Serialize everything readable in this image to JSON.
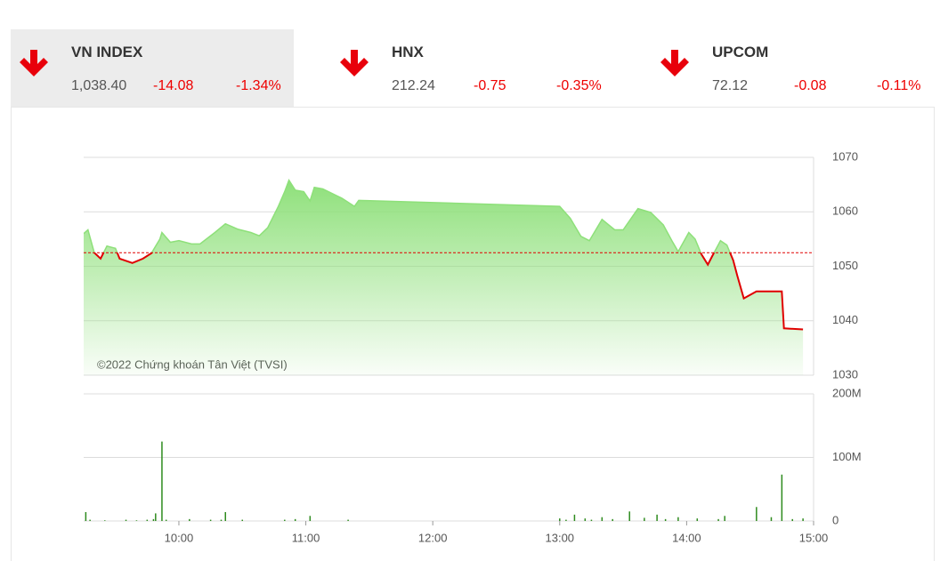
{
  "indices": [
    {
      "name": "VN INDEX",
      "value": "1,038.40",
      "change": "-14.08",
      "percent": "-1.34%"
    },
    {
      "name": "HNX",
      "value": "212.24",
      "change": "-0.75",
      "percent": "-0.35%"
    },
    {
      "name": "UPCOM",
      "value": "72.12",
      "change": "-0.08",
      "percent": "-0.11%"
    }
  ],
  "chart_data": [
    {
      "type": "area",
      "annotation": "©2022 Chứng khoán Tân Việt (TVSI)",
      "x": [
        "09:15",
        "09:17",
        "09:20",
        "09:23",
        "09:26",
        "09:30",
        "09:32",
        "09:38",
        "09:43",
        "09:47",
        "09:51",
        "09:52",
        "09:56",
        "10:00",
        "10:06",
        "10:10",
        "10:17",
        "10:22",
        "10:28",
        "10:34",
        "10:38",
        "10:42",
        "10:47",
        "10:50",
        "10:52",
        "10:55",
        "10:59",
        "11:02",
        "11:04",
        "11:08",
        "11:17",
        "11:23",
        "11:25",
        "11:34",
        "13:00",
        "13:05",
        "13:10",
        "13:14",
        "13:20",
        "13:26",
        "13:30",
        "13:37",
        "13:43",
        "13:49",
        "13:53",
        "13:56",
        "14:01",
        "14:04",
        "14:07",
        "14:10",
        "14:12",
        "14:16",
        "14:19",
        "14:22",
        "14:24",
        "14:27",
        "14:33",
        "14:45",
        "14:46",
        "14:55"
      ],
      "values": [
        1056,
        1056.7,
        1052.5,
        1051.4,
        1053.7,
        1053.3,
        1051.4,
        1050.6,
        1051.4,
        1052.4,
        1055,
        1056.2,
        1054.4,
        1054.7,
        1054.1,
        1054.1,
        1056.2,
        1057.8,
        1056.8,
        1056.2,
        1055.6,
        1057.1,
        1061,
        1063.7,
        1065.8,
        1064,
        1063.7,
        1062,
        1064.5,
        1064.2,
        1062.5,
        1061,
        1062.1,
        1062,
        1061,
        1058.8,
        1055.5,
        1054.7,
        1058.6,
        1056.7,
        1056.7,
        1060.6,
        1059.9,
        1057.6,
        1054.7,
        1052.7,
        1056.2,
        1055,
        1052.2,
        1050.3,
        1051.8,
        1054.7,
        1053.9,
        1051.1,
        1048.2,
        1044.1,
        1045.4,
        1045.4,
        1038.6,
        1038.4
      ],
      "reference": 1052.48,
      "color": "#8ee07a",
      "line_color": "#e00000",
      "xlim": [
        "09:15",
        "15:00"
      ],
      "ylim": [
        1030,
        1070
      ],
      "yticks": [
        1030,
        1040,
        1050,
        1060,
        1070
      ],
      "grid": true
    },
    {
      "type": "bar",
      "x": [
        "09:16",
        "09:18",
        "09:25",
        "09:35",
        "09:40",
        "09:45",
        "09:48",
        "09:49",
        "09:52",
        "09:54",
        "10:05",
        "10:15",
        "10:20",
        "10:22",
        "10:30",
        "10:50",
        "10:55",
        "11:02",
        "11:20",
        "13:00",
        "13:03",
        "13:07",
        "13:12",
        "13:15",
        "13:20",
        "13:25",
        "13:33",
        "13:40",
        "13:46",
        "13:50",
        "13:56",
        "14:05",
        "14:15",
        "14:18",
        "14:33",
        "14:40",
        "14:45",
        "14:50",
        "14:55"
      ],
      "values": [
        14,
        2,
        1,
        2,
        1,
        2,
        3,
        12,
        125,
        2,
        3,
        2,
        2,
        14,
        2,
        2,
        3,
        8,
        2,
        4,
        2,
        10,
        4,
        2,
        6,
        3,
        15,
        5,
        10,
        3,
        6,
        4,
        3,
        8,
        22,
        6,
        73,
        3,
        4
      ],
      "color": "#2e8b1e",
      "xlim": [
        "09:15",
        "15:00"
      ],
      "xticks": [
        "10:00",
        "11:00",
        "12:00",
        "13:00",
        "14:00",
        "15:00"
      ],
      "ylim": [
        0,
        200
      ],
      "yticks": [
        0,
        {
          "value": 100,
          "label": "100M"
        },
        {
          "value": 200,
          "label": "200M"
        }
      ],
      "grid": true
    }
  ]
}
